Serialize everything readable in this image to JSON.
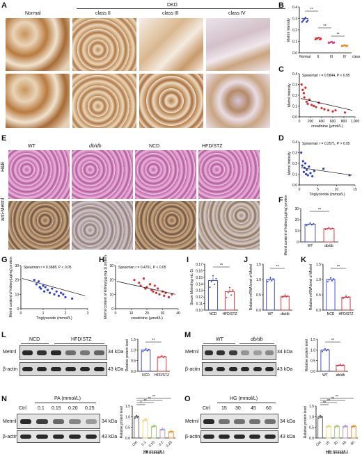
{
  "panel_letters": {
    "A": "A",
    "B": "B",
    "C": "C",
    "D": "D",
    "E": "E",
    "F": "F",
    "G": "G",
    "H": "H",
    "I": "I",
    "J": "J",
    "K": "K",
    "L": "L",
    "M": "M",
    "N": "N",
    "O": "O"
  },
  "panel_a": {
    "group_label": "DKD",
    "columns": [
      "Normal",
      "class II",
      "class III",
      "class IV"
    ]
  },
  "panel_e": {
    "columns": [
      "WT",
      "db/db",
      "NCD",
      "HFD/STZ"
    ],
    "rows": [
      "H&E",
      "anti-Metrnl"
    ]
  },
  "wb": {
    "L": {
      "groups": [
        "NCD",
        "HFD/STZ"
      ],
      "bands": [
        "Metrnl",
        "β-actin"
      ],
      "kda": [
        "34 kDa",
        "43 kDa"
      ]
    },
    "M": {
      "groups": [
        "WT",
        "db/db"
      ],
      "bands": [
        "Metrnl",
        "β-actin"
      ],
      "kda": [
        "34 kDa",
        "43 kDa"
      ]
    },
    "N": {
      "treatment": "PA (mmol/L)",
      "lanes": [
        "Ctrl",
        "0.1",
        "0.15",
        "0.20",
        "0.25"
      ],
      "bands": [
        "Metrnl",
        "β-actin"
      ],
      "kda": [
        "34 kDa",
        "43 kDa"
      ]
    },
    "O": {
      "treatment": "HG (mmol/L)",
      "lanes": [
        "Ctrl",
        "15",
        "30",
        "45",
        "60"
      ],
      "bands": [
        "Metrnl",
        "β-actin"
      ],
      "kda": [
        "34 kDa",
        "43 kDa"
      ]
    }
  },
  "colors": {
    "red": "#e0262b",
    "blue": "#2d3fd9",
    "pink": "#e23a8a",
    "orange": "#f08a1a",
    "yellow": "#e8d57a",
    "green": "#9bc86a",
    "violet": "#b58fd6"
  },
  "chart_data": [
    {
      "panel": "B",
      "type": "scatter",
      "ylabel": "Metrnl intensity",
      "categories": [
        "Normal",
        "II",
        "III",
        "IV"
      ],
      "xlabel_suffix": "class",
      "values": [
        0.3,
        0.13,
        0.095,
        0.065
      ],
      "ylim": [
        0.0,
        0.4
      ],
      "yticks": [
        "0.0",
        "0.1",
        "0.2",
        "0.3",
        "0.4"
      ],
      "sig": [
        "**",
        "**",
        "**"
      ]
    },
    {
      "panel": "C",
      "type": "scatter",
      "ylabel": "Metrnl intensity",
      "xlabel": "creatinine (μmol/L)",
      "annotation": "Spearman r = 0.5844, P < 0.05",
      "xticks": [
        "0",
        "200",
        "400",
        "600",
        "800",
        "1,000"
      ],
      "yticks": [
        "0.0",
        "0.1",
        "0.2",
        "0.3",
        "0.4"
      ],
      "xlim": [
        0,
        1000
      ],
      "ylim": [
        0,
        0.4
      ],
      "x": [
        40,
        60,
        80,
        90,
        110,
        130,
        150,
        180,
        220,
        260,
        300,
        350,
        400,
        450,
        520,
        600,
        650,
        820
      ],
      "y": [
        0.3,
        0.25,
        0.22,
        0.18,
        0.27,
        0.14,
        0.12,
        0.16,
        0.11,
        0.1,
        0.09,
        0.13,
        0.08,
        0.07,
        0.06,
        0.05,
        0.06,
        0.04
      ]
    },
    {
      "panel": "D",
      "type": "scatter",
      "ylabel": "Metrnl intensity",
      "xlabel": "Triglyceride (mmol/L)",
      "annotation": "Spearman r = 0.2571, P > 0.05",
      "xticks": [
        "0",
        "5",
        "10",
        "15"
      ],
      "yticks": [
        "0.0",
        "0.1",
        "0.2",
        "0.3",
        "0.4"
      ],
      "xlim": [
        0,
        15
      ],
      "ylim": [
        0,
        0.4
      ],
      "x": [
        0.5,
        0.8,
        1.0,
        1.2,
        1.4,
        1.6,
        1.8,
        2.0,
        2.3,
        2.6,
        3.0,
        3.5,
        4.0,
        6.5,
        13.5
      ],
      "y": [
        0.3,
        0.18,
        0.22,
        0.12,
        0.16,
        0.2,
        0.1,
        0.14,
        0.09,
        0.17,
        0.11,
        0.08,
        0.13,
        0.15,
        0.09
      ]
    },
    {
      "panel": "F",
      "type": "bar",
      "ylabel": "Metrnl content of kidney(μg/mg) protein",
      "categories": [
        "WT",
        "db/db"
      ],
      "values": [
        16,
        12
      ],
      "yticks": [
        "0",
        "10",
        "20",
        "30"
      ],
      "ylim": [
        0,
        30
      ],
      "sig": "**"
    },
    {
      "panel": "G",
      "type": "scatter",
      "ylabel": "Metrnl content of kidney(μg/mg) protein",
      "xlabel": "Triglyceride (mmol/L)",
      "annotation": "Spearman r = 0.3688, P < 0.05",
      "xticks": [
        "0",
        "1",
        "2",
        "3"
      ],
      "yticks": [
        "0",
        "10",
        "20",
        "30"
      ],
      "xlim": [
        0,
        3
      ],
      "ylim": [
        0,
        30
      ],
      "x": [
        0.6,
        0.7,
        0.8,
        0.85,
        0.9,
        1.0,
        1.05,
        1.1,
        1.2,
        1.3,
        1.4,
        1.5,
        1.6,
        1.7,
        1.8,
        1.9,
        2.0,
        2.3
      ],
      "y": [
        20,
        17,
        19,
        15,
        14,
        16,
        12,
        15,
        13,
        11,
        14,
        10,
        12,
        9,
        11,
        10,
        8,
        7
      ]
    },
    {
      "panel": "H",
      "type": "scatter",
      "ylabel": "Metrnl content of kidney(μg·mg-1) protein",
      "xlabel": "creatinine (μmol/L)",
      "annotation": "Spearman r = 0.4701, P < 0.05",
      "xticks": [
        "0",
        "10",
        "20",
        "30",
        "40"
      ],
      "yticks": [
        "0",
        "10",
        "20",
        "30"
      ],
      "xlim": [
        0,
        40
      ],
      "ylim": [
        0,
        30
      ],
      "x": [
        12,
        15,
        16,
        18,
        19,
        20,
        22,
        23,
        24,
        25,
        26,
        27,
        28,
        30,
        31,
        32,
        34,
        36
      ],
      "y": [
        20,
        18,
        16,
        21,
        14,
        15,
        17,
        13,
        12,
        16,
        11,
        14,
        10,
        12,
        9,
        11,
        8,
        10
      ]
    },
    {
      "panel": "I",
      "type": "bar",
      "ylabel": "Serum Metrnl(ng·mL-1)",
      "categories": [
        "NCD",
        "HFD/STZ"
      ],
      "values": [
        0.145,
        0.128
      ],
      "yticks": [
        "0.10",
        "0.11",
        "0.12",
        "0.13",
        "0.14",
        "0.15",
        "0.16",
        "0.17"
      ],
      "ylim": [
        0.1,
        0.17
      ],
      "sig": "**"
    },
    {
      "panel": "J",
      "type": "bar",
      "ylabel": "Relative mRNA level of Metrnl",
      "categories": [
        "WT",
        "db/db"
      ],
      "values": [
        1.0,
        0.45
      ],
      "yticks": [
        "0.0",
        "0.5",
        "1.0",
        "1.5"
      ],
      "ylim": [
        0,
        1.5
      ],
      "sig": "**"
    },
    {
      "panel": "K",
      "type": "bar",
      "ylabel": "Relative mRNA level of Metrnl",
      "categories": [
        "NCD",
        "HFD/STZ"
      ],
      "values": [
        1.0,
        0.42
      ],
      "yticks": [
        "0.0",
        "0.5",
        "1.0",
        "1.5"
      ],
      "ylim": [
        0,
        1.5
      ],
      "sig": "**"
    },
    {
      "panel": "L",
      "type": "bar",
      "ylabel": "Relative protein level",
      "categories": [
        "NCD",
        "HFD/STZ"
      ],
      "values": [
        1.0,
        0.68
      ],
      "yticks": [
        "0.0",
        "0.5",
        "1.0",
        "1.5"
      ],
      "ylim": [
        0,
        1.5
      ],
      "sig": "**"
    },
    {
      "panel": "M",
      "type": "bar",
      "ylabel": "Relative protein level",
      "categories": [
        "WT",
        "db/db"
      ],
      "values": [
        1.0,
        0.28
      ],
      "yticks": [
        "0.0",
        "0.5",
        "1.0",
        "1.5"
      ],
      "ylim": [
        0,
        1.5
      ],
      "sig": "**"
    },
    {
      "panel": "N",
      "type": "bar",
      "ylabel": "Relative protein level",
      "xlabel": "PA (mmol/L)",
      "categories": [
        "Ctrl",
        "0.1",
        "0.15",
        "0.2",
        "0.25"
      ],
      "values": [
        1.0,
        0.85,
        0.55,
        0.4,
        0.3
      ],
      "yticks": [
        "0.0",
        "0.5",
        "1.0",
        "1.5"
      ],
      "ylim": [
        0,
        1.5
      ],
      "sig": [
        "*",
        "**",
        "**",
        "**"
      ]
    },
    {
      "panel": "O",
      "type": "bar",
      "ylabel": "Relative protein level",
      "xlabel": "HG (mmol/L)",
      "categories": [
        "Ctrl",
        "15",
        "30",
        "45",
        "60"
      ],
      "values": [
        1.0,
        0.55,
        0.55,
        0.55,
        0.55
      ],
      "yticks": [
        "0.0",
        "0.5",
        "1.0",
        "1.5"
      ],
      "ylim": [
        0,
        1.5
      ],
      "sig": [
        "**",
        "**",
        "**",
        "**"
      ]
    }
  ]
}
